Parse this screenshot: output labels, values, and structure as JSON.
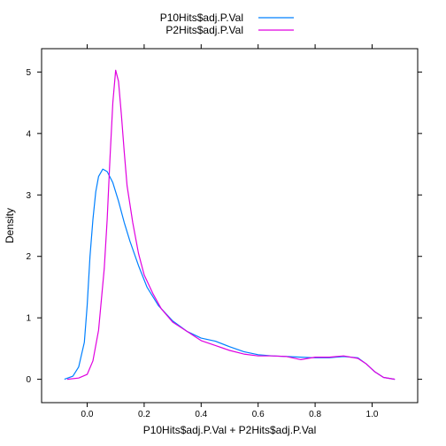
{
  "chart_data": {
    "type": "line",
    "title": "",
    "xlabel": "P10Hits$adj.P.Val + P2Hits$adj.P.Val",
    "ylabel": "Density",
    "xlim": [
      -0.16,
      1.16
    ],
    "ylim": [
      -0.38,
      5.38
    ],
    "xticks": [
      0.0,
      0.2,
      0.4,
      0.6,
      0.8,
      1.0
    ],
    "xtick_labels": [
      "0.0",
      "0.2",
      "0.4",
      "0.6",
      "0.8",
      "1.0"
    ],
    "yticks": [
      0,
      1,
      2,
      3,
      4,
      5
    ],
    "ytick_labels": [
      "0",
      "1",
      "2",
      "3",
      "4",
      "5"
    ],
    "grid": false,
    "legend": "top",
    "series": [
      {
        "name": "P10Hits$adj.P.Val",
        "color": "#0080ff",
        "points": [
          [
            -0.08,
            0.0
          ],
          [
            -0.05,
            0.05
          ],
          [
            -0.03,
            0.2
          ],
          [
            -0.01,
            0.6
          ],
          [
            0.0,
            1.2
          ],
          [
            0.01,
            2.0
          ],
          [
            0.02,
            2.6
          ],
          [
            0.03,
            3.05
          ],
          [
            0.04,
            3.3
          ],
          [
            0.055,
            3.42
          ],
          [
            0.07,
            3.38
          ],
          [
            0.09,
            3.2
          ],
          [
            0.11,
            2.9
          ],
          [
            0.13,
            2.55
          ],
          [
            0.15,
            2.25
          ],
          [
            0.18,
            1.85
          ],
          [
            0.21,
            1.5
          ],
          [
            0.25,
            1.2
          ],
          [
            0.3,
            0.95
          ],
          [
            0.35,
            0.78
          ],
          [
            0.4,
            0.67
          ],
          [
            0.45,
            0.62
          ],
          [
            0.5,
            0.53
          ],
          [
            0.55,
            0.45
          ],
          [
            0.6,
            0.4
          ],
          [
            0.65,
            0.38
          ],
          [
            0.7,
            0.37
          ],
          [
            0.75,
            0.36
          ],
          [
            0.8,
            0.35
          ],
          [
            0.85,
            0.35
          ],
          [
            0.9,
            0.37
          ],
          [
            0.95,
            0.35
          ],
          [
            0.98,
            0.25
          ],
          [
            1.01,
            0.12
          ],
          [
            1.04,
            0.03
          ],
          [
            1.08,
            0.0
          ]
        ]
      },
      {
        "name": "P2Hits$adj.P.Val",
        "color": "#e000e0",
        "points": [
          [
            -0.07,
            0.0
          ],
          [
            -0.03,
            0.02
          ],
          [
            0.0,
            0.08
          ],
          [
            0.02,
            0.3
          ],
          [
            0.04,
            0.8
          ],
          [
            0.06,
            1.8
          ],
          [
            0.07,
            2.6
          ],
          [
            0.08,
            3.6
          ],
          [
            0.09,
            4.5
          ],
          [
            0.1,
            5.03
          ],
          [
            0.11,
            4.85
          ],
          [
            0.12,
            4.3
          ],
          [
            0.13,
            3.7
          ],
          [
            0.14,
            3.15
          ],
          [
            0.16,
            2.55
          ],
          [
            0.18,
            2.05
          ],
          [
            0.2,
            1.7
          ],
          [
            0.23,
            1.4
          ],
          [
            0.26,
            1.15
          ],
          [
            0.3,
            0.93
          ],
          [
            0.35,
            0.78
          ],
          [
            0.4,
            0.63
          ],
          [
            0.45,
            0.55
          ],
          [
            0.5,
            0.47
          ],
          [
            0.55,
            0.41
          ],
          [
            0.6,
            0.38
          ],
          [
            0.65,
            0.38
          ],
          [
            0.7,
            0.37
          ],
          [
            0.75,
            0.32
          ],
          [
            0.8,
            0.36
          ],
          [
            0.85,
            0.36
          ],
          [
            0.9,
            0.38
          ],
          [
            0.95,
            0.34
          ],
          [
            0.98,
            0.25
          ],
          [
            1.01,
            0.12
          ],
          [
            1.04,
            0.03
          ],
          [
            1.08,
            0.0
          ]
        ]
      }
    ]
  }
}
